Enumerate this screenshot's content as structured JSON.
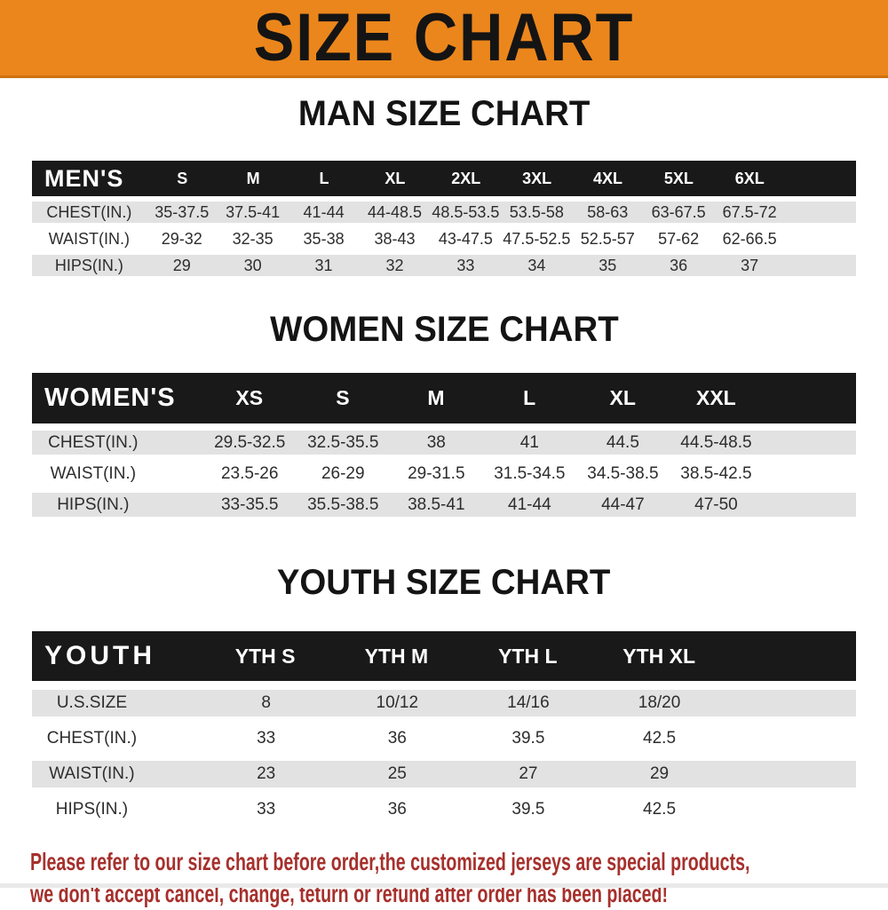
{
  "banner": {
    "title": "SIZE CHART",
    "bg_color": "#EB861C",
    "text_color": "#141414"
  },
  "sections": [
    {
      "heading": "MAN SIZE CHART",
      "table": {
        "header": [
          "MEN'S",
          "S",
          "M",
          "L",
          "XL",
          "2XL",
          "3XL",
          "4XL",
          "5XL",
          "6XL"
        ],
        "rows": [
          [
            "CHEST(IN.)",
            "35-37.5",
            "37.5-41",
            "41-44",
            "44-48.5",
            "48.5-53.5",
            "53.5-58",
            "58-63",
            "63-67.5",
            "67.5-72"
          ],
          [
            "WAIST(IN.)",
            "29-32",
            "32-35",
            "35-38",
            "38-43",
            "43-47.5",
            "47.5-52.5",
            "52.5-57",
            "57-62",
            "62-66.5"
          ],
          [
            "HIPS(IN.)",
            "29",
            "30",
            "31",
            "32",
            "33",
            "34",
            "35",
            "36",
            "37"
          ]
        ]
      }
    },
    {
      "heading": "WOMEN SIZE CHART",
      "table": {
        "header": [
          "WOMEN'S",
          "XS",
          "S",
          "M",
          "L",
          "XL",
          "XXL"
        ],
        "rows": [
          [
            "CHEST(IN.)",
            "29.5-32.5",
            "32.5-35.5",
            "38",
            "41",
            "44.5",
            "44.5-48.5"
          ],
          [
            "WAIST(IN.)",
            "23.5-26",
            "26-29",
            "29-31.5",
            "31.5-34.5",
            "34.5-38.5",
            "38.5-42.5"
          ],
          [
            "HIPS(IN.)",
            "33-35.5",
            "35.5-38.5",
            "38.5-41",
            "41-44",
            "44-47",
            "47-50"
          ]
        ]
      }
    },
    {
      "heading": "YOUTH SIZE CHART",
      "table": {
        "header": [
          "YOUTH",
          "YTH S",
          "YTH M",
          "YTH L",
          "YTH XL"
        ],
        "rows": [
          [
            "U.S.SIZE",
            "8",
            "10/12",
            "14/16",
            "18/20"
          ],
          [
            "CHEST(IN.)",
            "33",
            "36",
            "39.5",
            "42.5"
          ],
          [
            "WAIST(IN.)",
            "23",
            "25",
            "27",
            "29"
          ],
          [
            "HIPS(IN.)",
            "33",
            "36",
            "39.5",
            "42.5"
          ]
        ]
      }
    }
  ],
  "footer": {
    "line1": "Please refer to our size chart before order,the customized jerseys are special products,",
    "line2": "we don't accept cancel, change, teturn or refund after order has been placed!",
    "text_color": "#A6302C"
  },
  "colors": {
    "table_header_bar": "#191919",
    "row_stripe": "#E2E2E3",
    "cell_text": "#2D2D2D"
  }
}
